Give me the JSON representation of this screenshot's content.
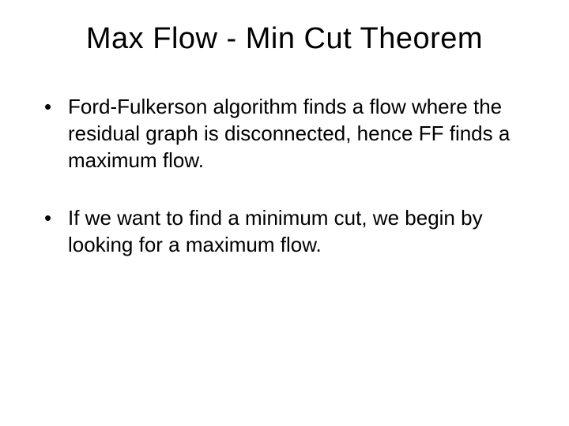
{
  "slide": {
    "title": "Max Flow - Min Cut Theorem",
    "bullets": [
      "Ford-Fulkerson algorithm finds a flow where the residual graph is disconnected, hence FF finds a maximum flow.",
      "If we want to find a minimum cut, we begin by looking for a maximum flow."
    ],
    "background_color": "#ffffff",
    "text_color": "#000000",
    "title_fontsize": 38,
    "body_fontsize": 26,
    "font_family": "Arial"
  }
}
